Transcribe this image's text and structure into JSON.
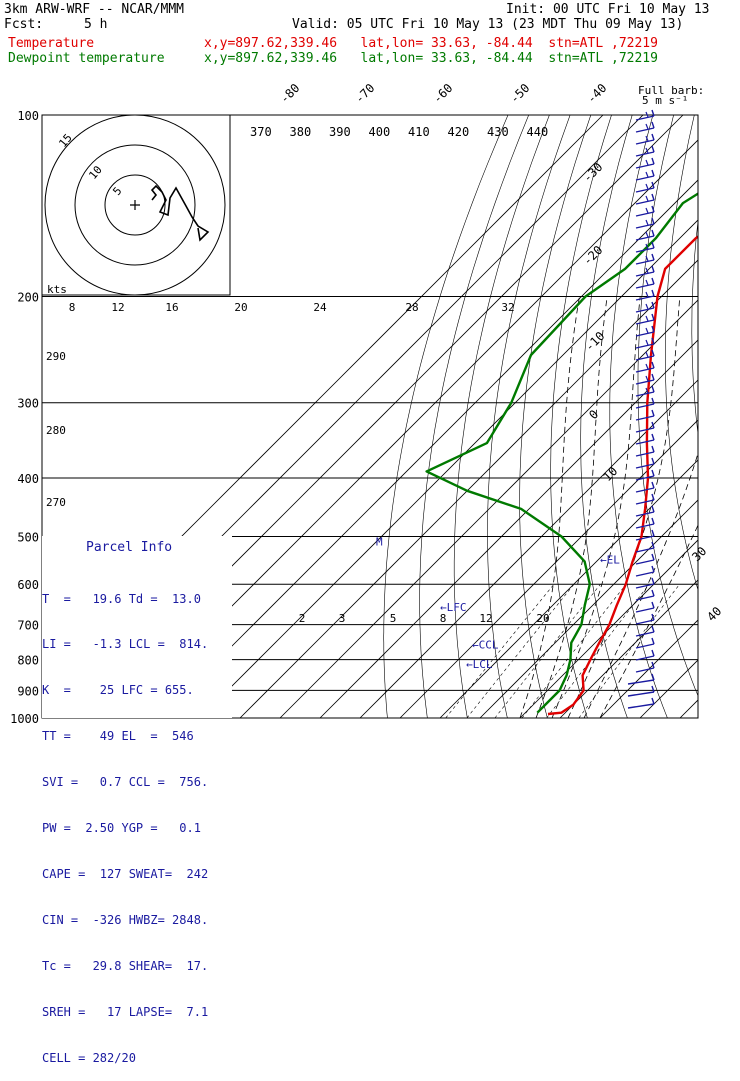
{
  "header": {
    "model": "3km ARW-WRF -- NCAR/MMM",
    "init": "Init: 00 UTC Fri 10 May 13",
    "fcst_label": "Fcst:",
    "fcst_value": "5 h",
    "valid": "Valid: 05 UTC Fri 10 May 13 (23 MDT Thu 09 May 13)",
    "temp_label": "Temperature",
    "temp_info": "x,y=897.62,339.46   lat,lon= 33.63, -84.44  stn=ATL ,72219",
    "dew_label": "Dewpoint temperature",
    "dew_info": "x,y=897.62,339.46   lat,lon= 33.63, -84.44  stn=ATL ,72219",
    "barb_title": "Full barb:",
    "barb_units": "5 m s⁻¹"
  },
  "colors": {
    "temperature": "#e00000",
    "dewpoint": "#007a00",
    "parcel_text": "#1a1aa0"
  },
  "chart_data": {
    "type": "skew-t",
    "pressure_ticks": [
      100,
      200,
      300,
      400,
      500,
      600,
      700,
      800,
      900,
      1000
    ],
    "isotherm_labels_top": [
      "-80",
      "-70",
      "-60",
      "-50",
      "-40"
    ],
    "isotherm_labels_right": [
      "-30",
      "-20",
      "-10",
      "0",
      "10"
    ],
    "isotherm_labels_corner": [
      "30",
      "40"
    ],
    "theta_labels_top": [
      "370",
      "380",
      "390",
      "400",
      "410",
      "420",
      "430",
      "440"
    ],
    "theta_labels_left": [
      "290",
      "280",
      "270"
    ],
    "hodograph_speed_axis": [
      "8",
      "12",
      "16",
      "20",
      "24",
      "28",
      "32"
    ],
    "hodograph_unit": "kts",
    "hodograph_rings": [
      "5",
      "10",
      "15"
    ],
    "mixing_ratio_labels": [
      "2",
      "3",
      "5",
      "8",
      "12",
      "20"
    ],
    "temperature": [
      {
        "p": 100,
        "t": -57
      },
      {
        "p": 120,
        "t": -58
      },
      {
        "p": 140,
        "t": -62
      },
      {
        "p": 160,
        "t": -66
      },
      {
        "p": 180,
        "t": -66
      },
      {
        "p": 200,
        "t": -61
      },
      {
        "p": 250,
        "t": -48
      },
      {
        "p": 300,
        "t": -37
      },
      {
        "p": 350,
        "t": -27
      },
      {
        "p": 400,
        "t": -18
      },
      {
        "p": 450,
        "t": -11
      },
      {
        "p": 500,
        "t": -5
      },
      {
        "p": 550,
        "t": -1
      },
      {
        "p": 600,
        "t": 3
      },
      {
        "p": 650,
        "t": 6
      },
      {
        "p": 700,
        "t": 9
      },
      {
        "p": 750,
        "t": 11
      },
      {
        "p": 800,
        "t": 13
      },
      {
        "p": 850,
        "t": 15
      },
      {
        "p": 900,
        "t": 19
      },
      {
        "p": 950,
        "t": 20
      },
      {
        "p": 980,
        "t": 19
      },
      {
        "p": 985,
        "t": 16
      }
    ],
    "dewpoint": [
      {
        "p": 100,
        "t": -66
      },
      {
        "p": 120,
        "t": -72
      },
      {
        "p": 140,
        "t": -78
      },
      {
        "p": 160,
        "t": -76
      },
      {
        "p": 180,
        "t": -76
      },
      {
        "p": 200,
        "t": -79
      },
      {
        "p": 250,
        "t": -78
      },
      {
        "p": 300,
        "t": -71
      },
      {
        "p": 350,
        "t": -67
      },
      {
        "p": 390,
        "t": -75
      },
      {
        "p": 420,
        "t": -60
      },
      {
        "p": 450,
        "t": -42
      },
      {
        "p": 500,
        "t": -25
      },
      {
        "p": 550,
        "t": -13
      },
      {
        "p": 600,
        "t": -6
      },
      {
        "p": 650,
        "t": -2
      },
      {
        "p": 700,
        "t": 2
      },
      {
        "p": 750,
        "t": 4
      },
      {
        "p": 800,
        "t": 8
      },
      {
        "p": 850,
        "t": 11
      },
      {
        "p": 900,
        "t": 13
      },
      {
        "p": 950,
        "t": 13
      },
      {
        "p": 980,
        "t": 13
      }
    ],
    "annotations": [
      {
        "text": "M",
        "p": 510
      },
      {
        "text": "←EL",
        "p": 546
      },
      {
        "text": "←LFC",
        "p": 655
      },
      {
        "text": "←CCL",
        "p": 756
      },
      {
        "text": "←LCL",
        "p": 814
      }
    ]
  },
  "parcel_info": {
    "title": "Parcel Info",
    "rows": [
      "T  =   19.6 Td =  13.0",
      "LI =   -1.3 LCL =  814.",
      "K  =    25 LFC = 655.",
      "TT =    49 EL  =  546",
      "SVI =   0.7 CCL =  756.",
      "PW =  2.50 YGP =   0.1",
      "CAPE =  127 SWEAT=  242",
      "CIN =  -326 HWBZ= 2848.",
      "Tc =   29.8 SHEAR=  17.",
      "SREH =   17 LAPSE=  7.1",
      "CELL = 282/20"
    ]
  }
}
